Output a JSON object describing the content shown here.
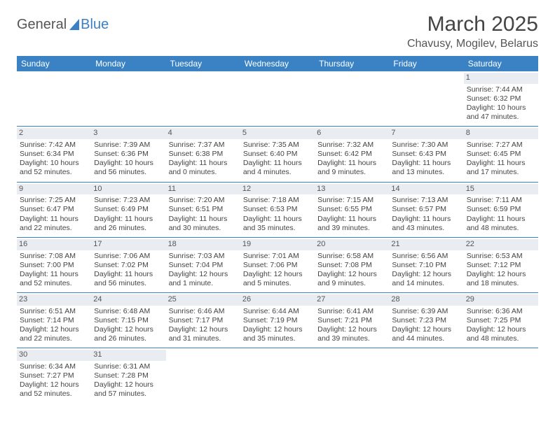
{
  "logo": {
    "part1": "General",
    "part2": "Blue"
  },
  "title": "March 2025",
  "location": "Chavusy, Mogilev, Belarus",
  "colors": {
    "header_bg": "#3b82c4",
    "header_text": "#ffffff",
    "daynum_bg": "#e9edf1",
    "border": "#3b82c4",
    "logo_blue": "#3b7fc4"
  },
  "day_headers": [
    "Sunday",
    "Monday",
    "Tuesday",
    "Wednesday",
    "Thursday",
    "Friday",
    "Saturday"
  ],
  "weeks": [
    [
      {
        "n": "",
        "sunrise": "",
        "sunset": "",
        "daylight": ""
      },
      {
        "n": "",
        "sunrise": "",
        "sunset": "",
        "daylight": ""
      },
      {
        "n": "",
        "sunrise": "",
        "sunset": "",
        "daylight": ""
      },
      {
        "n": "",
        "sunrise": "",
        "sunset": "",
        "daylight": ""
      },
      {
        "n": "",
        "sunrise": "",
        "sunset": "",
        "daylight": ""
      },
      {
        "n": "",
        "sunrise": "",
        "sunset": "",
        "daylight": ""
      },
      {
        "n": "1",
        "sunrise": "Sunrise: 7:44 AM",
        "sunset": "Sunset: 6:32 PM",
        "daylight": "Daylight: 10 hours and 47 minutes."
      }
    ],
    [
      {
        "n": "2",
        "sunrise": "Sunrise: 7:42 AM",
        "sunset": "Sunset: 6:34 PM",
        "daylight": "Daylight: 10 hours and 52 minutes."
      },
      {
        "n": "3",
        "sunrise": "Sunrise: 7:39 AM",
        "sunset": "Sunset: 6:36 PM",
        "daylight": "Daylight: 10 hours and 56 minutes."
      },
      {
        "n": "4",
        "sunrise": "Sunrise: 7:37 AM",
        "sunset": "Sunset: 6:38 PM",
        "daylight": "Daylight: 11 hours and 0 minutes."
      },
      {
        "n": "5",
        "sunrise": "Sunrise: 7:35 AM",
        "sunset": "Sunset: 6:40 PM",
        "daylight": "Daylight: 11 hours and 4 minutes."
      },
      {
        "n": "6",
        "sunrise": "Sunrise: 7:32 AM",
        "sunset": "Sunset: 6:42 PM",
        "daylight": "Daylight: 11 hours and 9 minutes."
      },
      {
        "n": "7",
        "sunrise": "Sunrise: 7:30 AM",
        "sunset": "Sunset: 6:43 PM",
        "daylight": "Daylight: 11 hours and 13 minutes."
      },
      {
        "n": "8",
        "sunrise": "Sunrise: 7:27 AM",
        "sunset": "Sunset: 6:45 PM",
        "daylight": "Daylight: 11 hours and 17 minutes."
      }
    ],
    [
      {
        "n": "9",
        "sunrise": "Sunrise: 7:25 AM",
        "sunset": "Sunset: 6:47 PM",
        "daylight": "Daylight: 11 hours and 22 minutes."
      },
      {
        "n": "10",
        "sunrise": "Sunrise: 7:23 AM",
        "sunset": "Sunset: 6:49 PM",
        "daylight": "Daylight: 11 hours and 26 minutes."
      },
      {
        "n": "11",
        "sunrise": "Sunrise: 7:20 AM",
        "sunset": "Sunset: 6:51 PM",
        "daylight": "Daylight: 11 hours and 30 minutes."
      },
      {
        "n": "12",
        "sunrise": "Sunrise: 7:18 AM",
        "sunset": "Sunset: 6:53 PM",
        "daylight": "Daylight: 11 hours and 35 minutes."
      },
      {
        "n": "13",
        "sunrise": "Sunrise: 7:15 AM",
        "sunset": "Sunset: 6:55 PM",
        "daylight": "Daylight: 11 hours and 39 minutes."
      },
      {
        "n": "14",
        "sunrise": "Sunrise: 7:13 AM",
        "sunset": "Sunset: 6:57 PM",
        "daylight": "Daylight: 11 hours and 43 minutes."
      },
      {
        "n": "15",
        "sunrise": "Sunrise: 7:11 AM",
        "sunset": "Sunset: 6:59 PM",
        "daylight": "Daylight: 11 hours and 48 minutes."
      }
    ],
    [
      {
        "n": "16",
        "sunrise": "Sunrise: 7:08 AM",
        "sunset": "Sunset: 7:00 PM",
        "daylight": "Daylight: 11 hours and 52 minutes."
      },
      {
        "n": "17",
        "sunrise": "Sunrise: 7:06 AM",
        "sunset": "Sunset: 7:02 PM",
        "daylight": "Daylight: 11 hours and 56 minutes."
      },
      {
        "n": "18",
        "sunrise": "Sunrise: 7:03 AM",
        "sunset": "Sunset: 7:04 PM",
        "daylight": "Daylight: 12 hours and 1 minute."
      },
      {
        "n": "19",
        "sunrise": "Sunrise: 7:01 AM",
        "sunset": "Sunset: 7:06 PM",
        "daylight": "Daylight: 12 hours and 5 minutes."
      },
      {
        "n": "20",
        "sunrise": "Sunrise: 6:58 AM",
        "sunset": "Sunset: 7:08 PM",
        "daylight": "Daylight: 12 hours and 9 minutes."
      },
      {
        "n": "21",
        "sunrise": "Sunrise: 6:56 AM",
        "sunset": "Sunset: 7:10 PM",
        "daylight": "Daylight: 12 hours and 14 minutes."
      },
      {
        "n": "22",
        "sunrise": "Sunrise: 6:53 AM",
        "sunset": "Sunset: 7:12 PM",
        "daylight": "Daylight: 12 hours and 18 minutes."
      }
    ],
    [
      {
        "n": "23",
        "sunrise": "Sunrise: 6:51 AM",
        "sunset": "Sunset: 7:14 PM",
        "daylight": "Daylight: 12 hours and 22 minutes."
      },
      {
        "n": "24",
        "sunrise": "Sunrise: 6:48 AM",
        "sunset": "Sunset: 7:15 PM",
        "daylight": "Daylight: 12 hours and 26 minutes."
      },
      {
        "n": "25",
        "sunrise": "Sunrise: 6:46 AM",
        "sunset": "Sunset: 7:17 PM",
        "daylight": "Daylight: 12 hours and 31 minutes."
      },
      {
        "n": "26",
        "sunrise": "Sunrise: 6:44 AM",
        "sunset": "Sunset: 7:19 PM",
        "daylight": "Daylight: 12 hours and 35 minutes."
      },
      {
        "n": "27",
        "sunrise": "Sunrise: 6:41 AM",
        "sunset": "Sunset: 7:21 PM",
        "daylight": "Daylight: 12 hours and 39 minutes."
      },
      {
        "n": "28",
        "sunrise": "Sunrise: 6:39 AM",
        "sunset": "Sunset: 7:23 PM",
        "daylight": "Daylight: 12 hours and 44 minutes."
      },
      {
        "n": "29",
        "sunrise": "Sunrise: 6:36 AM",
        "sunset": "Sunset: 7:25 PM",
        "daylight": "Daylight: 12 hours and 48 minutes."
      }
    ],
    [
      {
        "n": "30",
        "sunrise": "Sunrise: 6:34 AM",
        "sunset": "Sunset: 7:27 PM",
        "daylight": "Daylight: 12 hours and 52 minutes."
      },
      {
        "n": "31",
        "sunrise": "Sunrise: 6:31 AM",
        "sunset": "Sunset: 7:28 PM",
        "daylight": "Daylight: 12 hours and 57 minutes."
      },
      {
        "n": "",
        "sunrise": "",
        "sunset": "",
        "daylight": ""
      },
      {
        "n": "",
        "sunrise": "",
        "sunset": "",
        "daylight": ""
      },
      {
        "n": "",
        "sunrise": "",
        "sunset": "",
        "daylight": ""
      },
      {
        "n": "",
        "sunrise": "",
        "sunset": "",
        "daylight": ""
      },
      {
        "n": "",
        "sunrise": "",
        "sunset": "",
        "daylight": ""
      }
    ]
  ]
}
